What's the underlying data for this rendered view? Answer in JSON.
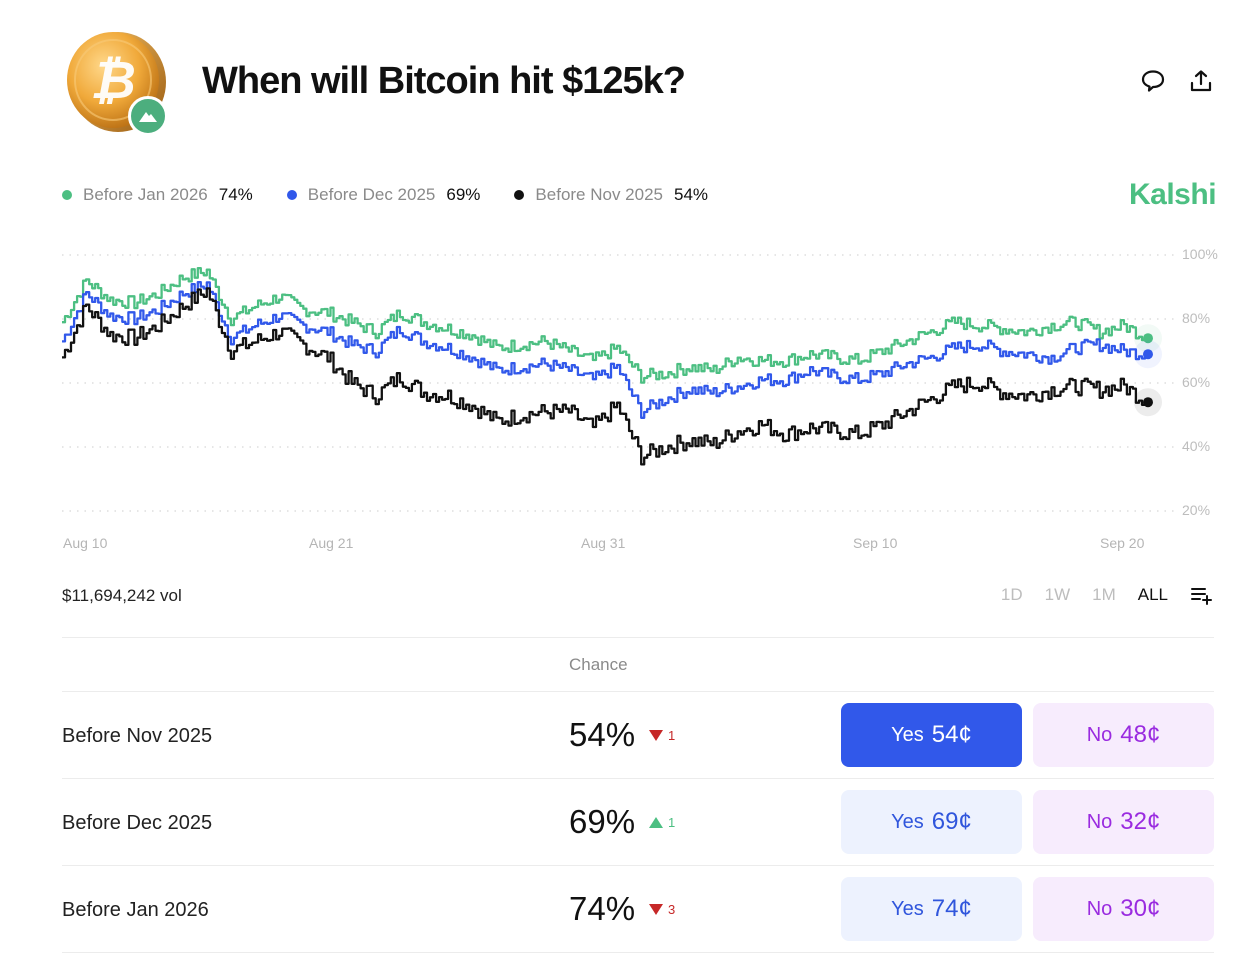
{
  "header": {
    "title": "When will Bitcoin hit $125k?",
    "icons": [
      "bitcoin-coin-icon",
      "kalshi-mountain-badge-icon",
      "comment-icon",
      "share-icon"
    ]
  },
  "brand": {
    "name": "Kalshi",
    "color": "#4cbf82"
  },
  "legend": [
    {
      "label": "Before Jan 2026",
      "value": "74%",
      "color": "#4cbf82"
    },
    {
      "label": "Before Dec 2025",
      "value": "69%",
      "color": "#3158ea"
    },
    {
      "label": "Before Nov 2025",
      "value": "54%",
      "color": "#111111"
    }
  ],
  "volume": "$11,694,242 vol",
  "ranges": [
    {
      "label": "1D",
      "active": false
    },
    {
      "label": "1W",
      "active": false
    },
    {
      "label": "1M",
      "active": false
    },
    {
      "label": "ALL",
      "active": true
    }
  ],
  "table": {
    "header_chance": "Chance",
    "rows": [
      {
        "label": "Before Nov 2025",
        "pct": "54%",
        "change": "1",
        "direction": "down",
        "yes_word": "Yes",
        "yes_price": "54¢",
        "no_word": "No",
        "no_price": "48¢",
        "yes_primary": true
      },
      {
        "label": "Before Dec 2025",
        "pct": "69%",
        "change": "1",
        "direction": "up",
        "yes_word": "Yes",
        "yes_price": "69¢",
        "no_word": "No",
        "no_price": "32¢",
        "yes_primary": false
      },
      {
        "label": "Before Jan 2026",
        "pct": "74%",
        "change": "3",
        "direction": "down",
        "yes_word": "Yes",
        "yes_price": "74¢",
        "no_word": "No",
        "no_price": "30¢",
        "yes_primary": false
      }
    ]
  },
  "chart_data": {
    "type": "line",
    "title": "When will Bitcoin hit $125k?",
    "xlabel": "",
    "ylabel": "Chance",
    "ylim": [
      20,
      100
    ],
    "yticks": [
      "100%",
      "80%",
      "60%",
      "40%",
      "20%"
    ],
    "xticks": [
      "Aug 10",
      "Aug 21",
      "Aug 31",
      "Sep 10",
      "Sep 20"
    ],
    "grid": true,
    "legend_position": "top",
    "x": [
      "Aug 8",
      "Aug 9",
      "Aug 10",
      "Aug 11",
      "Aug 12",
      "Aug 13",
      "Aug 14",
      "Aug 15",
      "Aug 16",
      "Aug 17",
      "Aug 18",
      "Aug 19",
      "Aug 20",
      "Aug 21",
      "Aug 22",
      "Aug 23",
      "Aug 24",
      "Aug 25",
      "Aug 26",
      "Aug 27",
      "Aug 28",
      "Aug 29",
      "Aug 30",
      "Aug 31",
      "Sep 1",
      "Sep 2",
      "Sep 3",
      "Sep 4",
      "Sep 5",
      "Sep 6",
      "Sep 7",
      "Sep 8",
      "Sep 9",
      "Sep 10",
      "Sep 11",
      "Sep 12",
      "Sep 13",
      "Sep 14",
      "Sep 15",
      "Sep 16",
      "Sep 17",
      "Sep 18",
      "Sep 19",
      "Sep 20",
      "Sep 21",
      "Sep 22"
    ],
    "series": [
      {
        "name": "Before Jan 2026",
        "color": "#4cbf82",
        "values": [
          79,
          92,
          86,
          85,
          88,
          93,
          95,
          80,
          84,
          87,
          83,
          82,
          79,
          76,
          82,
          79,
          77,
          75,
          71,
          72,
          73,
          70,
          67,
          71,
          62,
          63,
          65,
          64,
          68,
          67,
          67,
          69,
          68,
          67,
          70,
          73,
          76,
          79,
          78,
          77,
          76,
          78,
          79,
          76,
          78,
          74
        ]
      },
      {
        "name": "Before Dec 2025",
        "color": "#3158ea",
        "values": [
          73,
          88,
          81,
          80,
          83,
          88,
          91,
          74,
          78,
          81,
          78,
          76,
          72,
          70,
          77,
          73,
          71,
          68,
          64,
          65,
          66,
          64,
          61,
          65,
          51,
          55,
          58,
          57,
          59,
          61,
          61,
          64,
          62,
          61,
          63,
          66,
          68,
          71,
          72,
          70,
          69,
          68,
          71,
          72,
          70,
          69
        ]
      },
      {
        "name": "Before Nov 2025",
        "color": "#111111",
        "values": [
          68,
          84,
          75,
          74,
          78,
          84,
          89,
          70,
          73,
          76,
          72,
          68,
          60,
          56,
          62,
          57,
          56,
          53,
          48,
          50,
          51,
          51,
          46,
          53,
          37,
          40,
          42,
          41,
          45,
          47,
          44,
          46,
          45,
          44,
          47,
          51,
          55,
          59,
          60,
          57,
          56,
          58,
          59,
          58,
          59,
          54
        ]
      }
    ]
  }
}
